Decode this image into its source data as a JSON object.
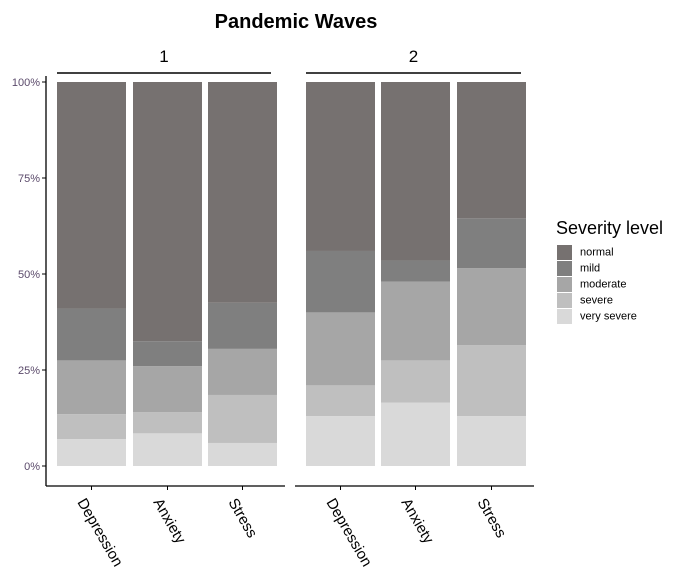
{
  "chart_data": {
    "type": "bar",
    "stacked": true,
    "percent": true,
    "title": "Pandemic Waves",
    "facets": [
      "1",
      "2"
    ],
    "categories": [
      "Depression",
      "Anxiety",
      "Stress"
    ],
    "y_ticks": [
      "0%",
      "25%",
      "50%",
      "75%",
      "100%"
    ],
    "ylim": [
      0,
      100
    ],
    "legend": {
      "title": "Severity level",
      "placement": "right",
      "entries": [
        "normal",
        "mild",
        "moderate",
        "severe",
        "very severe"
      ]
    },
    "colors": {
      "normal": "#767170",
      "mild": "#7f7f7f",
      "moderate": "#a6a6a6",
      "severe": "#bfbfbf",
      "very severe": "#d9d9d9"
    },
    "stack_order_bottom_to_top": [
      "very severe",
      "severe",
      "moderate",
      "mild",
      "normal"
    ],
    "series": [
      {
        "name": "normal",
        "values": [
          [
            59,
            67.5,
            57.5
          ],
          [
            44,
            46.5,
            35.5
          ]
        ]
      },
      {
        "name": "mild",
        "values": [
          [
            13.5,
            6.5,
            12
          ],
          [
            16,
            5.5,
            13
          ]
        ]
      },
      {
        "name": "moderate",
        "values": [
          [
            14,
            12,
            12
          ],
          [
            19,
            20.5,
            20
          ]
        ]
      },
      {
        "name": "severe",
        "values": [
          [
            6.5,
            5.5,
            12.5
          ],
          [
            8,
            11,
            18.5
          ]
        ]
      },
      {
        "name": "very severe",
        "values": [
          [
            7,
            8.5,
            6
          ],
          [
            13,
            16.5,
            13
          ]
        ]
      }
    ],
    "grid": false
  }
}
